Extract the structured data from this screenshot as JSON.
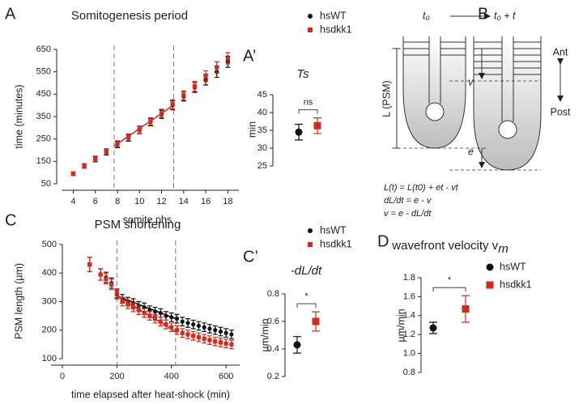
{
  "panel_labels": [
    "A",
    "A’",
    "B",
    "C",
    "C’",
    "D"
  ],
  "diagram": {
    "t_start": "t₀",
    "t_end": "t₀ + t",
    "v": "v",
    "e": "e",
    "length": "L (PSM)",
    "anterior": "Ant",
    "posterior": "Post",
    "equations": [
      "L(t) = L(t0) + et - vt",
      "dL/dt = e - v",
      "v = e - dL/dt"
    ]
  },
  "chart_data": [
    {
      "type": "scatter",
      "title": "Somitogenesis period",
      "xlabel": "somite phs",
      "ylabel": "time (minutes)",
      "xlim": [
        2.5,
        19
      ],
      "xticks": [
        4,
        6,
        8,
        10,
        12,
        14,
        16,
        18
      ],
      "ylim": [
        50,
        650
      ],
      "yticks": [
        50,
        150,
        250,
        350,
        450,
        550,
        650
      ],
      "vlines": [
        7.7,
        13.1
      ],
      "legend": true,
      "x": [
        4,
        5,
        6,
        7,
        8,
        9,
        10,
        11,
        12,
        13,
        14,
        15,
        16,
        17,
        18
      ],
      "series": [
        {
          "name": "hsWT",
          "color": "#111111",
          "marker": "circle",
          "values": [
            95,
            130,
            160,
            190,
            225,
            255,
            290,
            325,
            360,
            400,
            440,
            480,
            515,
            550,
            595
          ],
          "errors": [
            8,
            10,
            12,
            12,
            14,
            15,
            16,
            16,
            18,
            20,
            20,
            22,
            24,
            25,
            25
          ]
        },
        {
          "name": "hsdkk1",
          "color": "#d42a1e",
          "marker": "square",
          "values": [
            95,
            130,
            162,
            195,
            228,
            258,
            292,
            328,
            365,
            405,
            445,
            485,
            530,
            570,
            610
          ],
          "errors": [
            8,
            10,
            12,
            12,
            14,
            15,
            16,
            16,
            18,
            20,
            20,
            22,
            24,
            25,
            25
          ],
          "fit": {
            "x": [
              7.7,
              13.1
            ],
            "values": [
              218,
              402
            ]
          }
        }
      ]
    },
    {
      "type": "dot",
      "title": "Ts",
      "ylabel": "min",
      "ylim": [
        25,
        45
      ],
      "yticks": [
        25,
        30,
        35,
        40,
        45
      ],
      "annotation": "ns",
      "series": [
        {
          "color": "#111111",
          "marker": "circle",
          "values": [
            34.5
          ],
          "errors": [
            2.2
          ]
        },
        {
          "color": "#d42a1e",
          "marker": "square",
          "values": [
            36.3
          ],
          "errors": [
            2.2
          ]
        }
      ]
    },
    {
      "type": "scatter",
      "title": "PSM shortening",
      "xlabel": "time elapsed after heat-shock (min)",
      "ylabel": "PSM length (µm)",
      "xlim": [
        0,
        650
      ],
      "xticks": [
        0,
        200,
        400,
        600
      ],
      "ylim": [
        100,
        500
      ],
      "yticks": [
        100,
        200,
        300,
        400,
        500
      ],
      "vlines": [
        200,
        415
      ],
      "legend": true,
      "x": [
        100,
        140,
        160,
        180,
        200,
        220,
        240,
        260,
        280,
        300,
        320,
        340,
        360,
        380,
        400,
        420,
        440,
        460,
        480,
        500,
        520,
        540,
        560,
        580,
        600,
        620
      ],
      "series": [
        {
          "name": "hsWT",
          "color": "#111111",
          "marker": "circle",
          "values": [
            430,
            395,
            385,
            365,
            325,
            310,
            300,
            295,
            285,
            280,
            270,
            265,
            260,
            250,
            245,
            240,
            230,
            225,
            220,
            215,
            210,
            205,
            200,
            195,
            190,
            185
          ],
          "errors": [
            25,
            20,
            18,
            18,
            15,
            15,
            15,
            15,
            15,
            15,
            15,
            15,
            15,
            15,
            15,
            15,
            15,
            15,
            15,
            15,
            15,
            15,
            15,
            15,
            15,
            15
          ],
          "fit": {
            "x": [
              200,
              415
            ],
            "values": [
              320,
              240
            ]
          }
        },
        {
          "name": "hsdkk1",
          "color": "#d42a1e",
          "marker": "square",
          "values": [
            430,
            395,
            380,
            360,
            330,
            300,
            290,
            280,
            270,
            260,
            250,
            240,
            230,
            220,
            210,
            200,
            190,
            185,
            180,
            175,
            170,
            165,
            160,
            157,
            153,
            150
          ],
          "errors": [
            25,
            20,
            18,
            18,
            15,
            15,
            15,
            15,
            15,
            15,
            15,
            15,
            15,
            15,
            15,
            15,
            15,
            15,
            15,
            15,
            15,
            15,
            15,
            15,
            15,
            15
          ],
          "fit": {
            "x": [
              200,
              415
            ],
            "values": [
              320,
              195
            ]
          }
        }
      ]
    },
    {
      "type": "dot",
      "title": "-dL/dt",
      "ylabel": "µm/min",
      "ylim": [
        0.2,
        0.8
      ],
      "yticks": [
        0.2,
        0.4,
        0.6,
        0.8
      ],
      "annotation": "*",
      "series": [
        {
          "color": "#111111",
          "marker": "circle",
          "values": [
            0.43
          ],
          "errors": [
            0.06
          ]
        },
        {
          "color": "#d42a1e",
          "marker": "square",
          "values": [
            0.6
          ],
          "errors": [
            0.07
          ]
        }
      ]
    },
    {
      "type": "dot",
      "title": "wavefront velocity v",
      "title_subscript": "m",
      "ylabel": "µm/min",
      "ylim": [
        0.8,
        1.8
      ],
      "yticks": [
        {
          "value": 0.8,
          "label": "0.8"
        },
        {
          "value": 1,
          "label": "1.0"
        },
        {
          "value": 1.2,
          "label": "1.2"
        },
        {
          "value": 1.4,
          "label": "1.4"
        },
        {
          "value": 1.6,
          "label": "1.6"
        },
        {
          "value": 1.8,
          "label": "1.8"
        }
      ],
      "annotation": "*",
      "legend": true,
      "series": [
        {
          "name": "hsWT",
          "color": "#111111",
          "marker": "circle",
          "values": [
            1.27
          ],
          "errors": [
            0.06
          ]
        },
        {
          "name": "hsdkk1",
          "color": "#d42a1e",
          "marker": "square",
          "values": [
            1.47
          ],
          "errors": [
            0.14
          ]
        }
      ]
    }
  ]
}
